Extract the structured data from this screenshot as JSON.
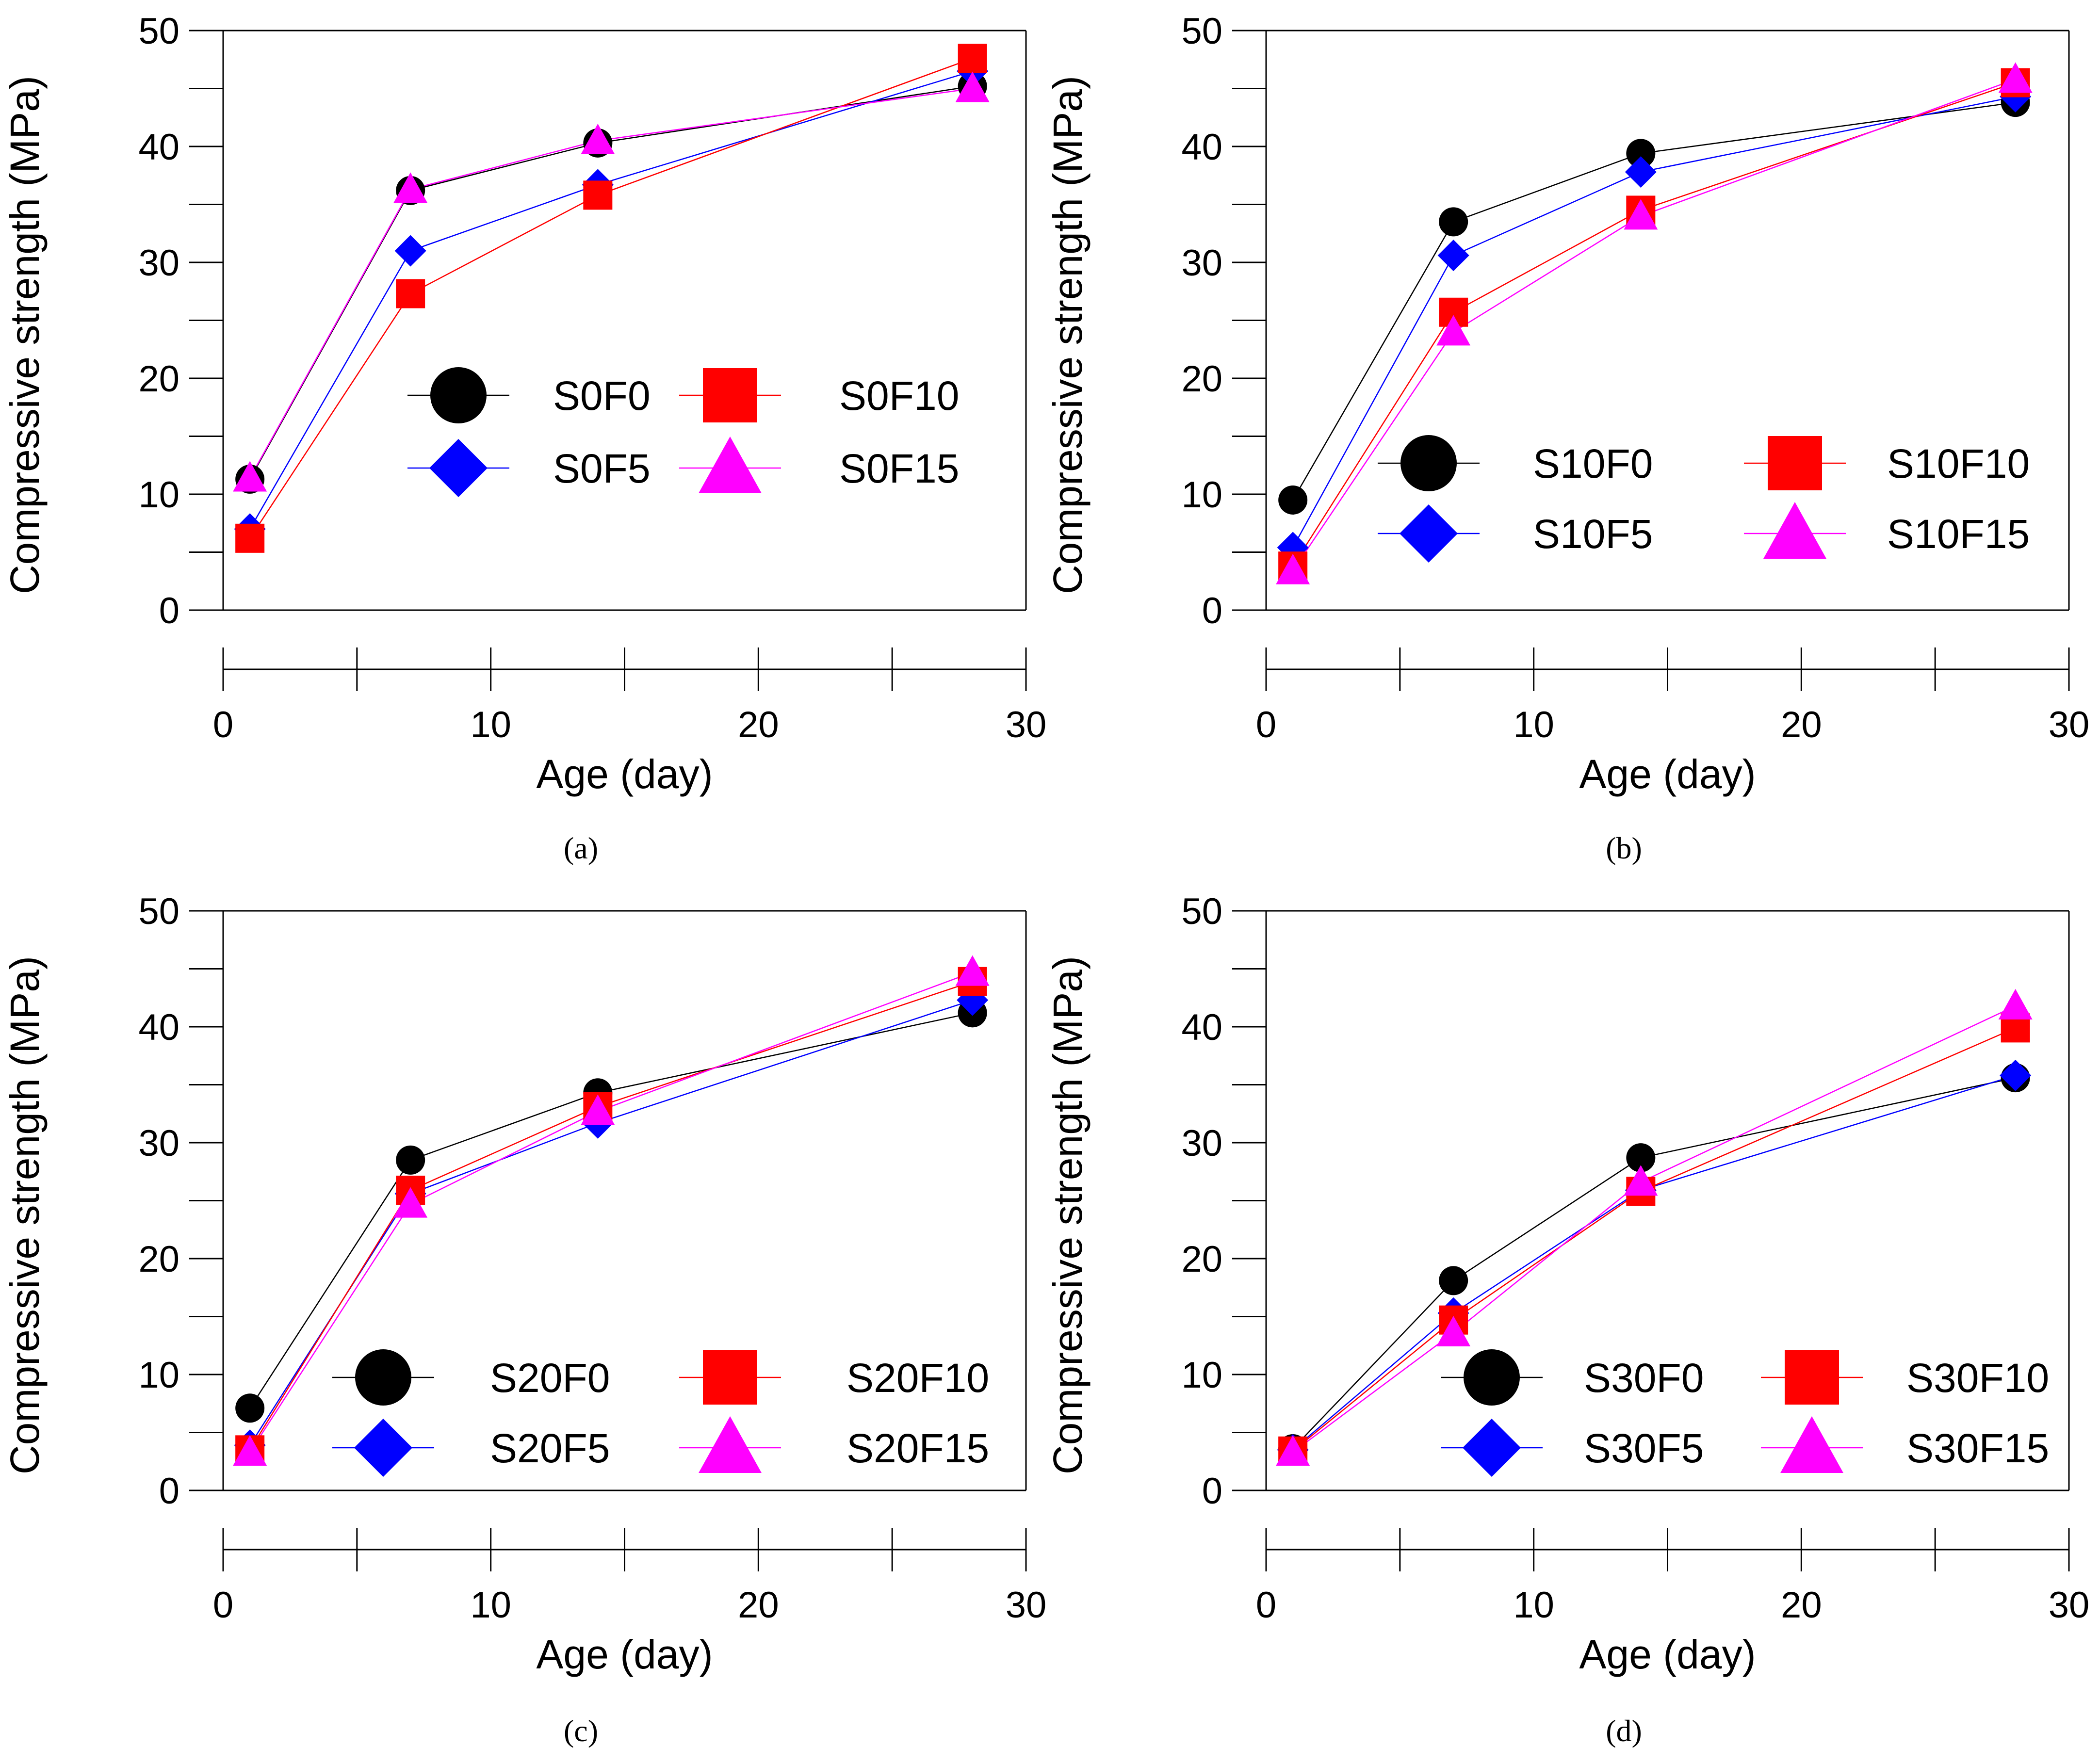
{
  "figure": {
    "colors": {
      "S0": "#000000",
      "S1": "#0000ff",
      "S2": "#ff0000",
      "S3": "#ff00ff"
    },
    "legend_markers": [
      "circle",
      "diamond",
      "square",
      "triangle"
    ]
  },
  "chart_data": [
    {
      "type": "line",
      "caption": "(a)",
      "xlabel": "Age (day)",
      "ylabel": "Compressive strength (MPa)",
      "xlim": [
        0,
        30
      ],
      "ylim": [
        0,
        50
      ],
      "xticks": [
        "0",
        "10",
        "20",
        "30"
      ],
      "yticks": [
        "0",
        "10",
        "20",
        "30",
        "40",
        "50"
      ],
      "x": [
        1,
        7,
        14,
        28
      ],
      "series": [
        {
          "name": "S0F0",
          "values": [
            11.3,
            36.2,
            40.3,
            45.2
          ]
        },
        {
          "name": "S0F5",
          "values": [
            7.0,
            31.0,
            36.7,
            46.5
          ]
        },
        {
          "name": "S0F10",
          "values": [
            6.2,
            27.3,
            35.8,
            47.6
          ]
        },
        {
          "name": "S0F15",
          "values": [
            11.4,
            36.3,
            40.5,
            45.0
          ]
        }
      ]
    },
    {
      "type": "line",
      "caption": "(b)",
      "xlabel": "Age (day)",
      "ylabel": "Compressive strength (MPa)",
      "xlim": [
        0,
        30
      ],
      "ylim": [
        0,
        50
      ],
      "xticks": [
        "0",
        "10",
        "20",
        "30"
      ],
      "yticks": [
        "0",
        "10",
        "20",
        "30",
        "40",
        "50"
      ],
      "x": [
        1,
        7,
        14,
        28
      ],
      "series": [
        {
          "name": "S10F0",
          "values": [
            9.5,
            33.5,
            39.4,
            43.8
          ]
        },
        {
          "name": "S10F5",
          "values": [
            5.4,
            30.6,
            37.8,
            44.3
          ]
        },
        {
          "name": "S10F10",
          "values": [
            3.8,
            25.7,
            34.5,
            45.5
          ]
        },
        {
          "name": "S10F15",
          "values": [
            3.4,
            24.0,
            34.0,
            45.8
          ]
        }
      ]
    },
    {
      "type": "line",
      "caption": "(c)",
      "xlabel": "Age (day)",
      "ylabel": "Compressive strength (MPa)",
      "xlim": [
        0,
        30
      ],
      "ylim": [
        0,
        50
      ],
      "xticks": [
        "0",
        "10",
        "20",
        "30"
      ],
      "yticks": [
        "0",
        "10",
        "20",
        "30",
        "40",
        "50"
      ],
      "x": [
        1,
        7,
        14,
        28
      ],
      "series": [
        {
          "name": "S20F0",
          "values": [
            7.1,
            28.5,
            34.3,
            41.2
          ]
        },
        {
          "name": "S20F5",
          "values": [
            3.9,
            25.6,
            31.7,
            42.3
          ]
        },
        {
          "name": "S20F10",
          "values": [
            3.5,
            25.9,
            33.1,
            43.9
          ]
        },
        {
          "name": "S20F15",
          "values": [
            3.3,
            24.7,
            32.7,
            44.7
          ]
        }
      ]
    },
    {
      "type": "line",
      "caption": "(d)",
      "xlabel": "Age (day)",
      "ylabel": "Compressive strength (MPa)",
      "xlim": [
        0,
        30
      ],
      "ylim": [
        0,
        50
      ],
      "xticks": [
        "0",
        "10",
        "20",
        "30"
      ],
      "yticks": [
        "0",
        "10",
        "20",
        "30",
        "40",
        "50"
      ],
      "x": [
        1,
        7,
        14,
        28
      ],
      "series": [
        {
          "name": "S30F0",
          "values": [
            3.6,
            18.1,
            28.7,
            35.6
          ]
        },
        {
          "name": "S30F5",
          "values": [
            3.5,
            15.3,
            25.9,
            35.8
          ]
        },
        {
          "name": "S30F10",
          "values": [
            3.4,
            14.7,
            25.8,
            39.9
          ]
        },
        {
          "name": "S30F15",
          "values": [
            3.3,
            13.6,
            26.6,
            41.8
          ]
        }
      ]
    }
  ]
}
